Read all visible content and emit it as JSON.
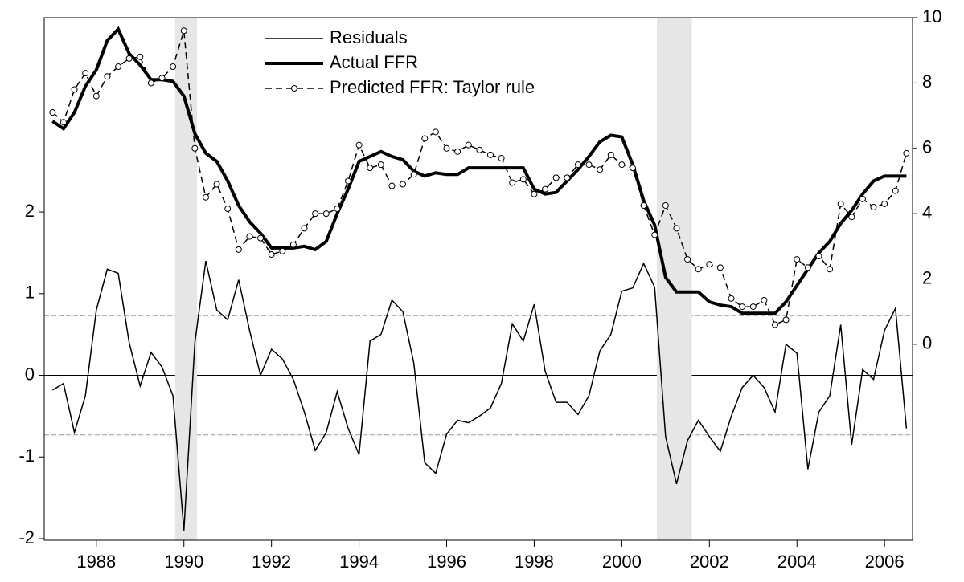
{
  "chart_data": {
    "type": "line",
    "x": [
      1987.0,
      1987.25,
      1987.5,
      1987.75,
      1988.0,
      1988.25,
      1988.5,
      1988.75,
      1989.0,
      1989.25,
      1989.5,
      1989.75,
      1990.0,
      1990.25,
      1990.5,
      1990.75,
      1991.0,
      1991.25,
      1991.5,
      1991.75,
      1992.0,
      1992.25,
      1992.5,
      1992.75,
      1993.0,
      1993.25,
      1993.5,
      1993.75,
      1994.0,
      1994.25,
      1994.5,
      1994.75,
      1995.0,
      1995.25,
      1995.5,
      1995.75,
      1996.0,
      1996.25,
      1996.5,
      1996.75,
      1997.0,
      1997.25,
      1997.5,
      1997.75,
      1998.0,
      1998.25,
      1998.5,
      1998.75,
      1999.0,
      1999.25,
      1999.5,
      1999.75,
      2000.0,
      2000.25,
      2000.5,
      2000.75,
      2001.0,
      2001.25,
      2001.5,
      2001.75,
      2002.0,
      2002.25,
      2002.5,
      2002.75,
      2003.0,
      2003.25,
      2003.5,
      2003.75,
      2004.0,
      2004.25,
      2004.5,
      2004.75,
      2005.0,
      2005.25,
      2005.5,
      2005.75,
      2006.0,
      2006.25,
      2006.5
    ],
    "series": [
      {
        "name": "Residuals",
        "color": "#000000",
        "axis": "y",
        "width": 1.5,
        "dash": "none",
        "marker": false,
        "values": [
          -0.18,
          -0.1,
          -0.7,
          -0.25,
          0.8,
          1.3,
          1.25,
          0.4,
          -0.13,
          0.28,
          0.1,
          -0.25,
          -1.9,
          0.4,
          1.4,
          0.8,
          0.68,
          1.17,
          0.55,
          0.0,
          0.32,
          0.2,
          -0.05,
          -0.45,
          -0.92,
          -0.7,
          -0.2,
          -0.65,
          -0.97,
          0.42,
          0.5,
          0.92,
          0.78,
          0.15,
          -1.07,
          -1.2,
          -0.72,
          -0.55,
          -0.58,
          -0.5,
          -0.4,
          -0.1,
          0.63,
          0.42,
          0.87,
          0.05,
          -0.33,
          -0.33,
          -0.48,
          -0.25,
          0.3,
          0.5,
          1.03,
          1.07,
          1.37,
          1.08,
          -0.75,
          -1.33,
          -0.8,
          -0.55,
          -0.75,
          -0.93,
          -0.5,
          -0.15,
          0.0,
          -0.15,
          -0.45,
          0.38,
          0.27,
          -1.15,
          -0.45,
          -0.25,
          0.62,
          -0.85,
          0.07,
          -0.05,
          0.55,
          0.82,
          -0.65
        ]
      },
      {
        "name": "Actual FFR",
        "color": "#000000",
        "axis": "y2",
        "width": 4,
        "dash": "none",
        "marker": false,
        "values": [
          6.83,
          6.6,
          7.1,
          7.9,
          8.4,
          9.3,
          9.65,
          8.9,
          8.55,
          8.1,
          8.1,
          8.05,
          7.6,
          6.45,
          5.85,
          5.6,
          5.0,
          4.25,
          3.75,
          3.4,
          2.95,
          2.95,
          2.95,
          3.0,
          2.9,
          3.15,
          4.0,
          4.75,
          5.6,
          5.75,
          5.9,
          5.75,
          5.65,
          5.3,
          5.15,
          5.25,
          5.2,
          5.2,
          5.4,
          5.4,
          5.4,
          5.4,
          5.4,
          5.4,
          4.75,
          4.6,
          4.65,
          5.0,
          5.35,
          5.75,
          6.2,
          6.4,
          6.35,
          5.5,
          4.4,
          3.65,
          2.05,
          1.6,
          1.6,
          1.6,
          1.3,
          1.2,
          1.15,
          0.95,
          0.95,
          0.95,
          0.95,
          1.3,
          1.8,
          2.3,
          2.8,
          3.15,
          3.7,
          4.1,
          4.6,
          5.0,
          5.15,
          5.15,
          5.15
        ]
      },
      {
        "name": "Predicted FFR: Taylor rule",
        "color": "#000000",
        "axis": "y2",
        "width": 1.5,
        "dash": "8 5",
        "marker": true,
        "values": [
          7.1,
          6.8,
          7.8,
          8.3,
          7.6,
          8.2,
          8.5,
          8.75,
          8.8,
          8.0,
          8.15,
          8.5,
          9.6,
          6.0,
          4.5,
          4.9,
          4.15,
          2.9,
          3.3,
          3.25,
          2.75,
          2.85,
          3.05,
          3.55,
          4.0,
          4.0,
          4.15,
          5.0,
          6.1,
          5.4,
          5.5,
          4.85,
          4.9,
          5.2,
          6.3,
          6.5,
          6.0,
          5.9,
          6.1,
          5.95,
          5.8,
          5.7,
          4.95,
          5.05,
          4.6,
          4.75,
          5.1,
          5.1,
          5.5,
          5.5,
          5.35,
          5.8,
          5.5,
          5.4,
          4.25,
          3.35,
          4.25,
          3.55,
          2.6,
          2.3,
          2.45,
          2.35,
          1.4,
          1.15,
          1.15,
          1.35,
          0.6,
          0.75,
          2.6,
          2.35,
          2.7,
          2.3,
          4.3,
          3.9,
          4.45,
          4.2,
          4.3,
          4.7,
          5.85
        ]
      }
    ],
    "xlim": [
      1986.81,
      2006.64
    ],
    "xticks": [
      1988,
      1990,
      1992,
      1994,
      1996,
      1998,
      2000,
      2002,
      2004,
      2006
    ],
    "ylim": [
      -2.02,
      4.38
    ],
    "yticks": [
      -2,
      -1,
      0,
      1,
      2
    ],
    "y2lim": [
      -6,
      10
    ],
    "y2ticks": [
      0,
      2,
      4,
      6,
      8,
      10
    ],
    "hlines": [
      {
        "value": 0,
        "dash": "none"
      },
      {
        "value": 0.73,
        "dash": "6 3"
      },
      {
        "value": -0.73,
        "dash": "6 3"
      }
    ],
    "shaded_ranges": [
      [
        1989.8,
        1990.3
      ],
      [
        2000.8,
        2001.6
      ]
    ],
    "shade_color": "#e6e6e6"
  }
}
